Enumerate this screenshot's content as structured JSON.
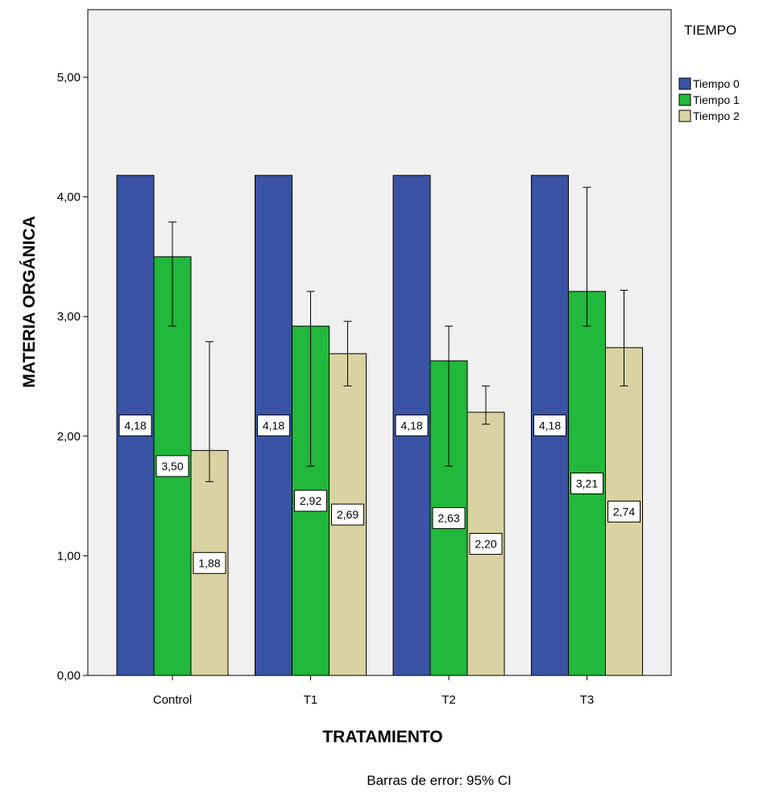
{
  "chart_data": {
    "type": "bar",
    "xlabel": "TRATAMIENTO",
    "ylabel": "MATERIA ORGÁNICA",
    "categories": [
      "Control",
      "T1",
      "T2",
      "T3"
    ],
    "ylim": [
      0,
      5.6
    ],
    "yticks": [
      "0,00",
      "1,00",
      "2,00",
      "3,00",
      "4,00",
      "5,00"
    ],
    "ytick_values": [
      0,
      1,
      2,
      3,
      4,
      5
    ],
    "legend": {
      "title": "TIEMPO",
      "placement": "top-right-outside"
    },
    "grid": false,
    "series": [
      {
        "name": "Tiempo 0",
        "color": "#3a53a4",
        "values": [
          4.18,
          4.18,
          4.18,
          4.18
        ],
        "labels": [
          "4,18",
          "4,18",
          "4,18",
          "4,18"
        ],
        "ci_low": [
          null,
          null,
          null,
          null
        ],
        "ci_high": [
          null,
          null,
          null,
          null
        ]
      },
      {
        "name": "Tiempo 1",
        "color": "#21b83b",
        "values": [
          3.5,
          2.92,
          2.63,
          3.21
        ],
        "labels": [
          "3,50",
          "2,92",
          "2,63",
          "3,21"
        ],
        "ci_low": [
          2.92,
          1.75,
          1.75,
          2.92
        ],
        "ci_high": [
          3.79,
          3.21,
          2.92,
          4.08
        ]
      },
      {
        "name": "Tiempo 2",
        "color": "#d9d3a1",
        "values": [
          1.88,
          2.69,
          2.2,
          2.74
        ],
        "labels": [
          "1,88",
          "2,69",
          "2,20",
          "2,74"
        ],
        "ci_low": [
          1.62,
          2.42,
          2.1,
          2.42
        ],
        "ci_high": [
          2.79,
          2.96,
          2.42,
          3.22
        ]
      }
    ],
    "footnote": "Barras de error: 95% CI",
    "plot_background": "#f0f0f0"
  }
}
